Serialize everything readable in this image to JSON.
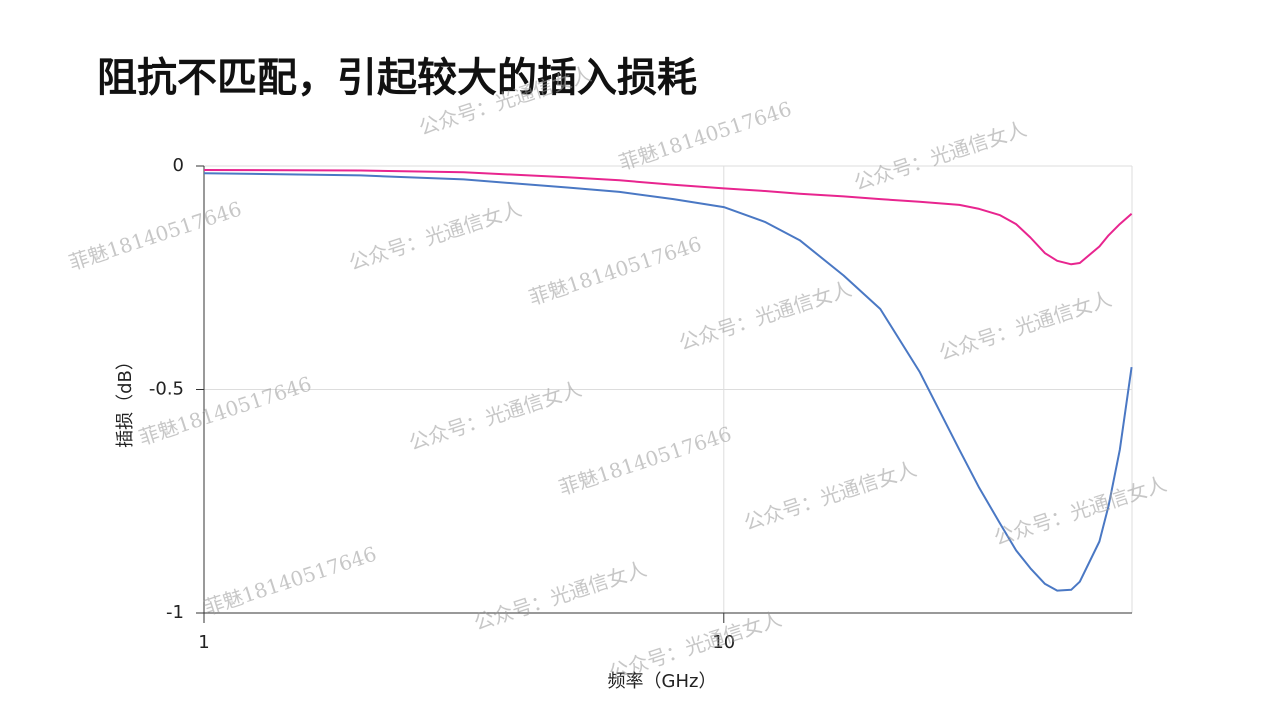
{
  "chart_data": {
    "type": "line",
    "title": "阻抗不匹配，引起较大的插入损耗",
    "x_label": "频率（GHz）",
    "y_label": "插损（dB）",
    "x_scale": "log",
    "xlim": [
      1,
      61
    ],
    "xticks": [
      1,
      10
    ],
    "ylim": [
      -1,
      0
    ],
    "yticks": [
      0,
      -0.5,
      -1
    ],
    "grid": true,
    "x": [
      1,
      2,
      3.16,
      5,
      6.3,
      8,
      10,
      12,
      14,
      17,
      20,
      23.8,
      28.4,
      31,
      34,
      36.5,
      38.9,
      41.5,
      43.8,
      46.6,
      48.4,
      52.8,
      55,
      57.8,
      60.9
    ],
    "series": [
      {
        "color": "#e8258f",
        "values": [
          -0.009,
          -0.01,
          -0.014,
          -0.025,
          -0.032,
          -0.042,
          -0.05,
          -0.056,
          -0.062,
          -0.068,
          -0.074,
          -0.08,
          -0.087,
          -0.096,
          -0.11,
          -0.13,
          -0.16,
          -0.195,
          -0.212,
          -0.22,
          -0.217,
          -0.18,
          -0.155,
          -0.13,
          -0.107
        ]
      },
      {
        "color": "#4a78c4",
        "values": [
          -0.016,
          -0.021,
          -0.03,
          -0.048,
          -0.058,
          -0.074,
          -0.092,
          -0.125,
          -0.166,
          -0.245,
          -0.32,
          -0.46,
          -0.635,
          -0.72,
          -0.8,
          -0.86,
          -0.9,
          -0.935,
          -0.95,
          -0.948,
          -0.93,
          -0.84,
          -0.76,
          -0.635,
          -0.45
        ]
      }
    ]
  },
  "watermarks": [
    "公众号：光通信女人",
    "菲魅18140517646",
    "公众号：光通信女人",
    "菲魅18140517646",
    "公众号：光通信女人",
    "菲魅18140517646",
    "公众号：光通信女人",
    "公众号：光通信女人",
    "菲魅18140517646",
    "公众号：光通信女人",
    "菲魅18140517646",
    "公众号：光通信女人",
    "公众号：光通信女人",
    "菲魅18140517646",
    "公众号：光通信女人",
    "公众号：光通信女人"
  ]
}
